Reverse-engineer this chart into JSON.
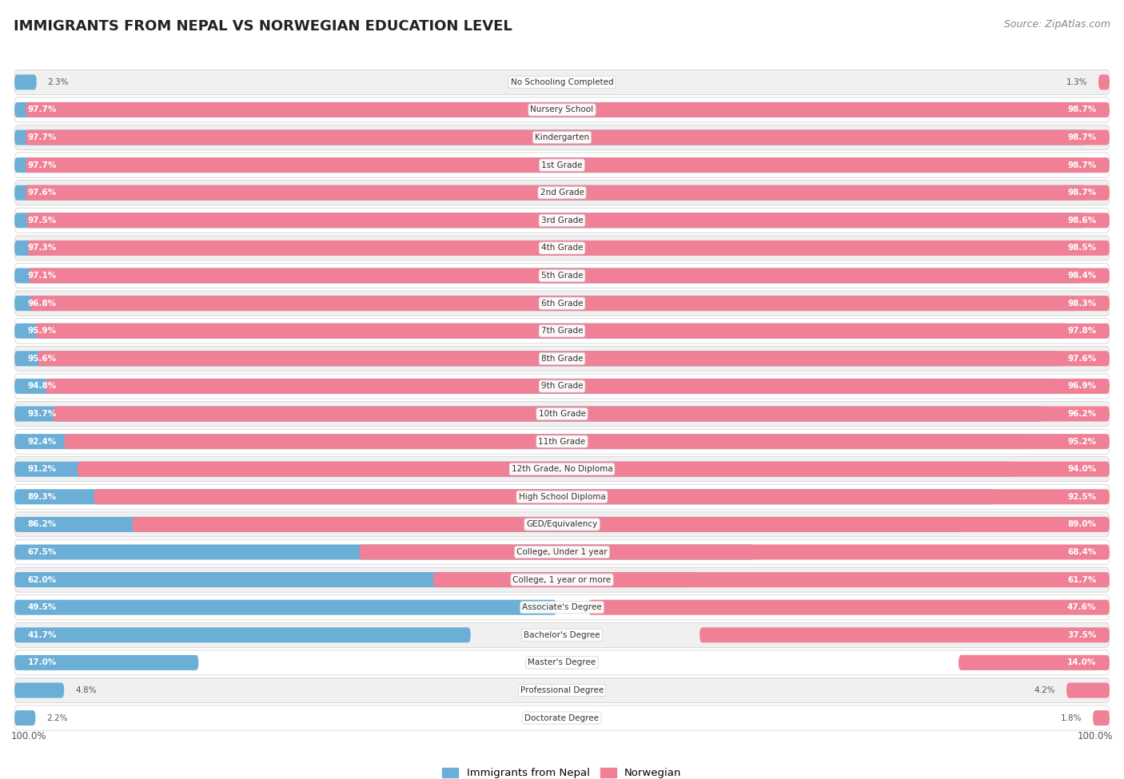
{
  "title": "IMMIGRANTS FROM NEPAL VS NORWEGIAN EDUCATION LEVEL",
  "source": "Source: ZipAtlas.com",
  "categories": [
    "No Schooling Completed",
    "Nursery School",
    "Kindergarten",
    "1st Grade",
    "2nd Grade",
    "3rd Grade",
    "4th Grade",
    "5th Grade",
    "6th Grade",
    "7th Grade",
    "8th Grade",
    "9th Grade",
    "10th Grade",
    "11th Grade",
    "12th Grade, No Diploma",
    "High School Diploma",
    "GED/Equivalency",
    "College, Under 1 year",
    "College, 1 year or more",
    "Associate's Degree",
    "Bachelor's Degree",
    "Master's Degree",
    "Professional Degree",
    "Doctorate Degree"
  ],
  "nepal_values": [
    2.3,
    97.7,
    97.7,
    97.7,
    97.6,
    97.5,
    97.3,
    97.1,
    96.8,
    95.9,
    95.6,
    94.8,
    93.7,
    92.4,
    91.2,
    89.3,
    86.2,
    67.5,
    62.0,
    49.5,
    41.7,
    17.0,
    4.8,
    2.2
  ],
  "norwegian_values": [
    1.3,
    98.7,
    98.7,
    98.7,
    98.7,
    98.6,
    98.5,
    98.4,
    98.3,
    97.8,
    97.6,
    96.9,
    96.2,
    95.2,
    94.0,
    92.5,
    89.0,
    68.4,
    61.7,
    47.6,
    37.5,
    14.0,
    4.2,
    1.8
  ],
  "nepal_color": "#6BAED6",
  "norwegian_color": "#F08096",
  "background_color": "#ffffff",
  "row_colors": [
    "#f0f0f0",
    "#ffffff"
  ],
  "title_fontsize": 13,
  "source_fontsize": 9,
  "legend_nepal": "Immigrants from Nepal",
  "legend_norwegian": "Norwegian"
}
